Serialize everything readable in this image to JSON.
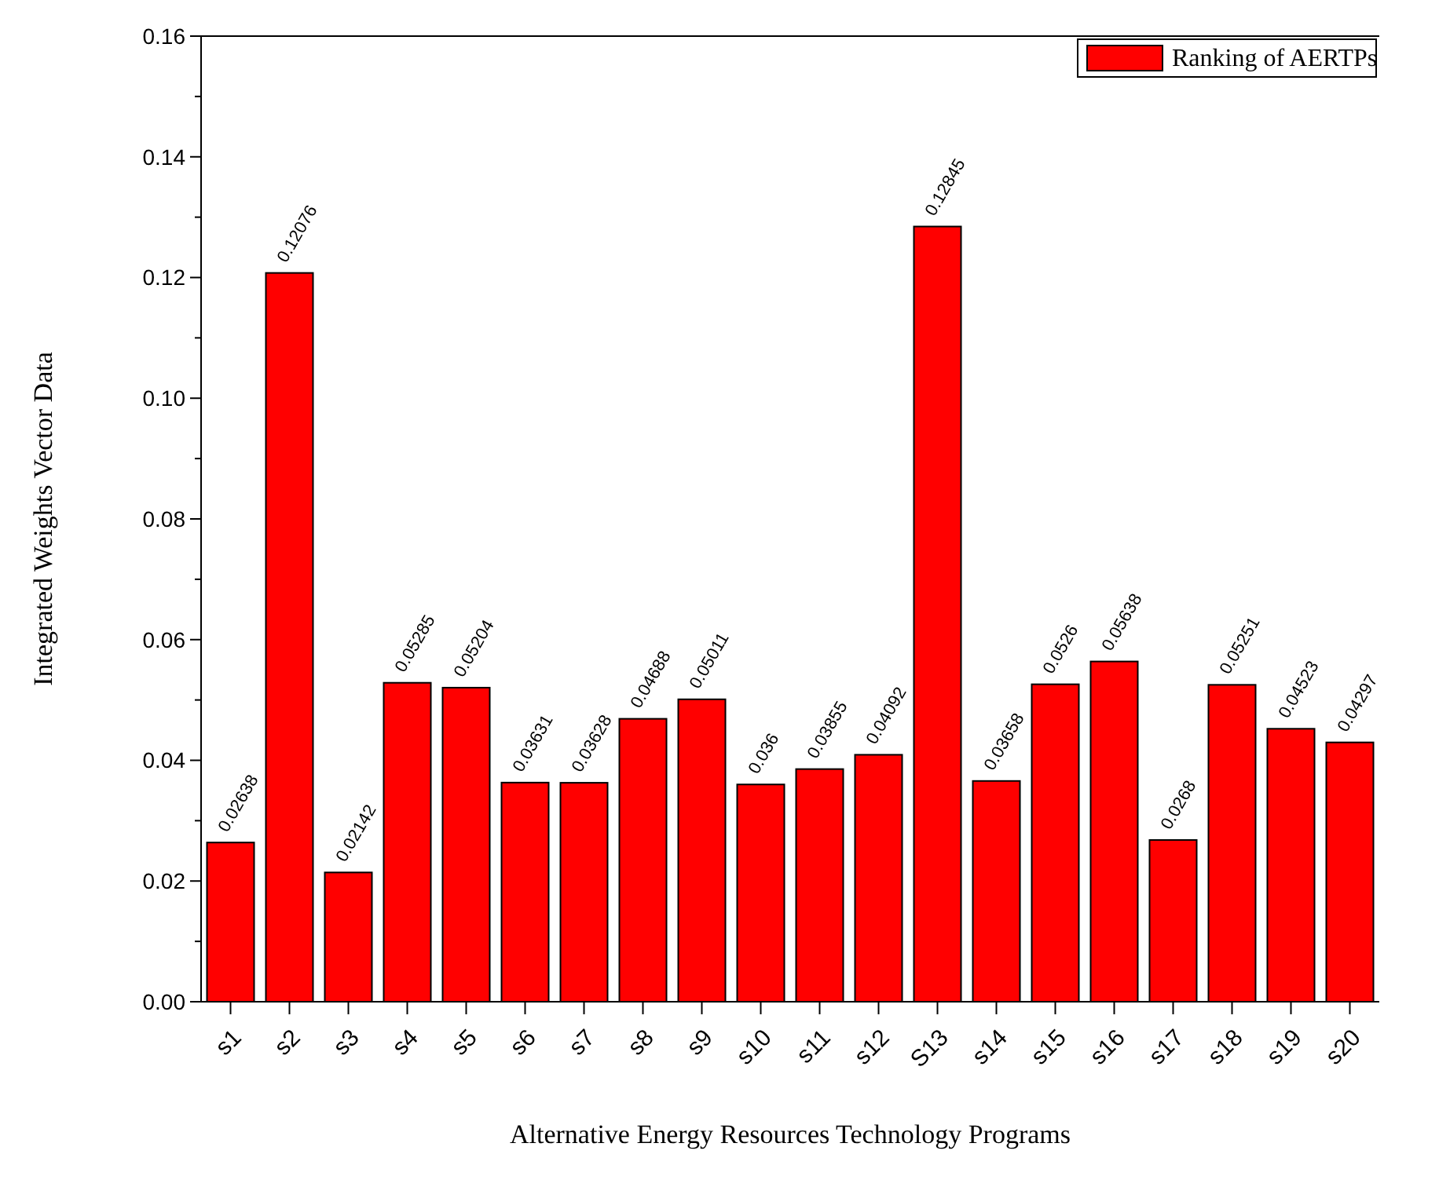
{
  "chart_data": {
    "type": "bar",
    "xlabel": "Alternative Energy Resources Technology Programs",
    "ylabel": "Integrated Weights Vector Data",
    "categories": [
      "s1",
      "s2",
      "s3",
      "s4",
      "s5",
      "s6",
      "s7",
      "s8",
      "s9",
      "s10",
      "s11",
      "s12",
      "S13",
      "s14",
      "s15",
      "s16",
      "s17",
      "s18",
      "s19",
      "s20"
    ],
    "series": [
      {
        "name": "Ranking of AERTPs",
        "color": "#ff0000",
        "values": [
          0.02638,
          0.12076,
          0.02142,
          0.05285,
          0.05204,
          0.03631,
          0.03628,
          0.04688,
          0.05011,
          0.036,
          0.03855,
          0.04092,
          0.12845,
          0.03658,
          0.0526,
          0.05638,
          0.0268,
          0.05251,
          0.04523,
          0.04297
        ]
      }
    ],
    "ylim": [
      0,
      0.16
    ],
    "yticks": [
      {
        "value": 0,
        "label": "0.00"
      },
      {
        "value": 0.01,
        "label": null
      },
      {
        "value": 0.02,
        "label": "0.02"
      },
      {
        "value": 0.03,
        "label": null
      },
      {
        "value": 0.04,
        "label": "0.04"
      },
      {
        "value": 0.05,
        "label": null
      },
      {
        "value": 0.06,
        "label": "0.06"
      },
      {
        "value": 0.07,
        "label": null
      },
      {
        "value": 0.08,
        "label": "0.08"
      },
      {
        "value": 0.09,
        "label": null
      },
      {
        "value": 0.1,
        "label": "0.10"
      },
      {
        "value": 0.11,
        "label": null
      },
      {
        "value": 0.12,
        "label": "0.12"
      },
      {
        "value": 0.13,
        "label": null
      },
      {
        "value": 0.14,
        "label": "0.14"
      },
      {
        "value": 0.15,
        "label": null
      },
      {
        "value": 0.16,
        "label": "0.16"
      }
    ],
    "data_labels": true,
    "legend": "top right",
    "grid": false
  }
}
